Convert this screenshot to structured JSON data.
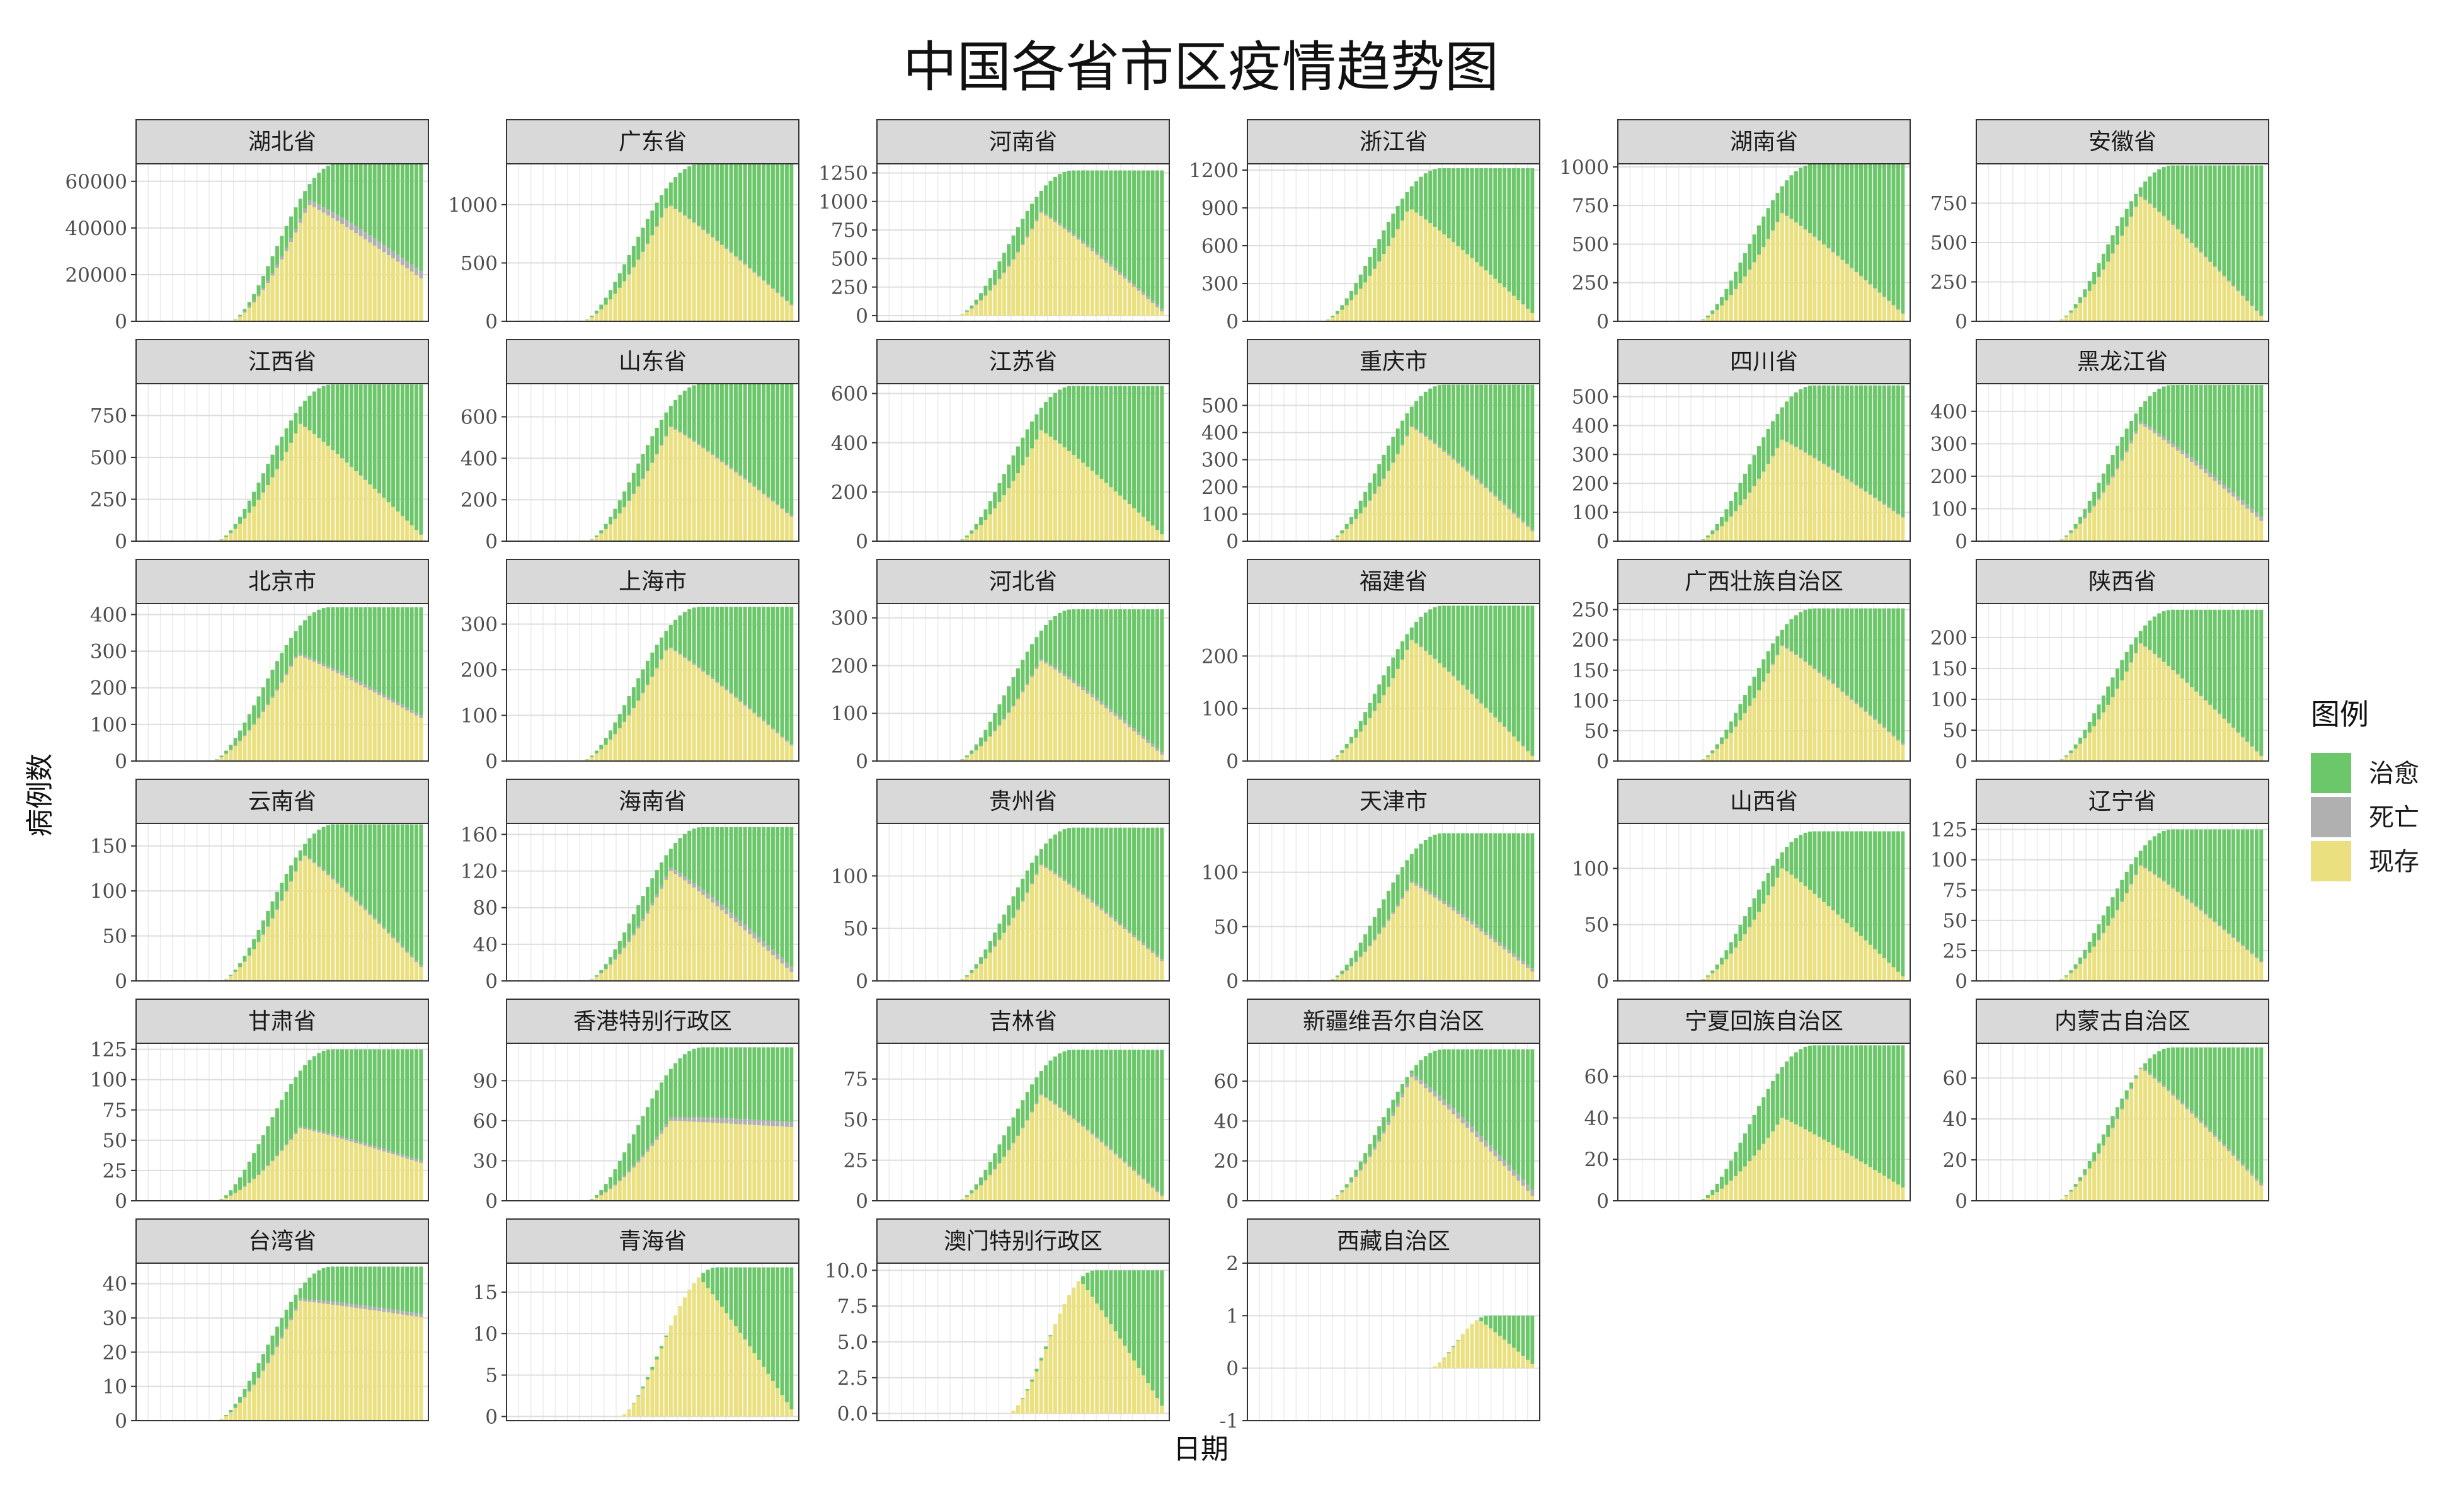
{
  "title": "中国各省市区疫情趋势图",
  "xlabel": "日期",
  "ylabel": "病例数",
  "legend": {
    "title": "图例",
    "items": [
      {
        "label": "治愈",
        "color": "#6cc76a"
      },
      {
        "label": "死亡",
        "color": "#b0b0b0"
      },
      {
        "label": "现存",
        "color": "#ebe07f"
      }
    ]
  },
  "chart_data": {
    "type": "bar",
    "stacked": true,
    "stack_order": [
      "现存",
      "死亡",
      "治愈"
    ],
    "colors": {
      "治愈": "#6cc76a",
      "死亡": "#b0b0b0",
      "现存": "#ebe07f"
    },
    "grid": true,
    "legend_position": "right",
    "days": 60,
    "panels": [
      {
        "name": "湖北省",
        "yticks": [
          0,
          20000,
          40000,
          60000
        ],
        "ylim": [
          0,
          67500
        ],
        "onset": 18,
        "confirmed": 67800,
        "peak": 50000,
        "final": 17000,
        "deaths": 3100
      },
      {
        "name": "广东省",
        "yticks": [
          0,
          500,
          1000
        ],
        "ylim": [
          0,
          1350
        ],
        "onset": 14,
        "confirmed": 1350,
        "peak": 1000,
        "final": 100,
        "deaths": 8
      },
      {
        "name": "河南省",
        "yticks": [
          0,
          250,
          500,
          750,
          1000,
          1250
        ],
        "ylim": [
          -50,
          1330
        ],
        "onset": 15,
        "confirmed": 1272,
        "peak": 900,
        "final": 0,
        "deaths": 22
      },
      {
        "name": "浙江省",
        "yticks": [
          0,
          300,
          600,
          900,
          1200
        ],
        "ylim": [
          0,
          1250
        ],
        "onset": 14,
        "confirmed": 1215,
        "peak": 900,
        "final": 30,
        "deaths": 1
      },
      {
        "name": "湖南省",
        "yticks": [
          0,
          250,
          500,
          750,
          1000
        ],
        "ylim": [
          0,
          1020
        ],
        "onset": 15,
        "confirmed": 1018,
        "peak": 700,
        "final": 20,
        "deaths": 4
      },
      {
        "name": "安徽省",
        "yticks": [
          0,
          250,
          500,
          750
        ],
        "ylim": [
          0,
          1000
        ],
        "onset": 15,
        "confirmed": 990,
        "peak": 790,
        "final": 0,
        "deaths": 6
      },
      {
        "name": "江西省",
        "yticks": [
          0,
          250,
          500,
          750
        ],
        "ylim": [
          0,
          940
        ],
        "onset": 15,
        "confirmed": 935,
        "peak": 700,
        "final": 10,
        "deaths": 1
      },
      {
        "name": "山东省",
        "yticks": [
          0,
          200,
          400,
          600
        ],
        "ylim": [
          0,
          760
        ],
        "onset": 15,
        "confirmed": 760,
        "peak": 550,
        "final": 100,
        "deaths": 6
      },
      {
        "name": "江苏省",
        "yticks": [
          0,
          200,
          400,
          600
        ],
        "ylim": [
          0,
          640
        ],
        "onset": 15,
        "confirmed": 631,
        "peak": 450,
        "final": 10,
        "deaths": 0
      },
      {
        "name": "重庆市",
        "yticks": [
          0,
          100,
          200,
          300,
          400,
          500
        ],
        "ylim": [
          0,
          580
        ],
        "onset": 15,
        "confirmed": 576,
        "peak": 420,
        "final": 20,
        "deaths": 6
      },
      {
        "name": "四川省",
        "yticks": [
          0,
          100,
          200,
          300,
          400,
          500
        ],
        "ylim": [
          0,
          545
        ],
        "onset": 15,
        "confirmed": 539,
        "peak": 350,
        "final": 70,
        "deaths": 3
      },
      {
        "name": "黑龙江省",
        "yticks": [
          0,
          100,
          200,
          300,
          400
        ],
        "ylim": [
          0,
          485
        ],
        "onset": 15,
        "confirmed": 481,
        "peak": 360,
        "final": 50,
        "deaths": 13
      },
      {
        "name": "北京市",
        "yticks": [
          0,
          100,
          200,
          300,
          400
        ],
        "ylim": [
          0,
          430
        ],
        "onset": 14,
        "confirmed": 420,
        "peak": 290,
        "final": 110,
        "deaths": 8
      },
      {
        "name": "上海市",
        "yticks": [
          0,
          100,
          200,
          300
        ],
        "ylim": [
          0,
          345
        ],
        "onset": 14,
        "confirmed": 338,
        "peak": 250,
        "final": 25,
        "deaths": 3
      },
      {
        "name": "河北省",
        "yticks": [
          0,
          100,
          200,
          300
        ],
        "ylim": [
          0,
          330
        ],
        "onset": 15,
        "confirmed": 318,
        "peak": 210,
        "final": 5,
        "deaths": 6
      },
      {
        "name": "福建省",
        "yticks": [
          0,
          100,
          200
        ],
        "ylim": [
          0,
          300
        ],
        "onset": 15,
        "confirmed": 296,
        "peak": 230,
        "final": 0,
        "deaths": 1
      },
      {
        "name": "广西壮族自治区",
        "yticks": [
          0,
          50,
          100,
          150,
          200,
          250
        ],
        "ylim": [
          0,
          260
        ],
        "onset": 15,
        "confirmed": 252,
        "peak": 190,
        "final": 20,
        "deaths": 2
      },
      {
        "name": "陕西省",
        "yticks": [
          0,
          50,
          100,
          150,
          200
        ],
        "ylim": [
          0,
          255
        ],
        "onset": 15,
        "confirmed": 245,
        "peak": 190,
        "final": 0,
        "deaths": 1
      },
      {
        "name": "云南省",
        "yticks": [
          0,
          50,
          100,
          150
        ],
        "ylim": [
          0,
          175
        ],
        "onset": 16,
        "confirmed": 174,
        "peak": 140,
        "final": 10,
        "deaths": 2
      },
      {
        "name": "海南省",
        "yticks": [
          0,
          40,
          80,
          120,
          160
        ],
        "ylim": [
          0,
          172
        ],
        "onset": 15,
        "confirmed": 168,
        "peak": 120,
        "final": 5,
        "deaths": 6
      },
      {
        "name": "贵州省",
        "yticks": [
          0,
          50,
          100
        ],
        "ylim": [
          0,
          150
        ],
        "onset": 15,
        "confirmed": 146,
        "peak": 110,
        "final": 15,
        "deaths": 2
      },
      {
        "name": "天津市",
        "yticks": [
          0,
          50,
          100
        ],
        "ylim": [
          0,
          145
        ],
        "onset": 15,
        "confirmed": 136,
        "peak": 90,
        "final": 5,
        "deaths": 3
      },
      {
        "name": "山西省",
        "yticks": [
          0,
          50,
          100
        ],
        "ylim": [
          0,
          140
        ],
        "onset": 15,
        "confirmed": 133,
        "peak": 100,
        "final": 0,
        "deaths": 0
      },
      {
        "name": "辽宁省",
        "yticks": [
          0,
          25,
          50,
          75,
          100,
          125
        ],
        "ylim": [
          0,
          130
        ],
        "onset": 15,
        "confirmed": 125,
        "peak": 95,
        "final": 12,
        "deaths": 1
      },
      {
        "name": "甘肃省",
        "yticks": [
          0,
          25,
          50,
          75,
          100,
          125
        ],
        "ylim": [
          0,
          130
        ],
        "onset": 15,
        "confirmed": 125,
        "peak": 60,
        "final": 30,
        "deaths": 2
      },
      {
        "name": "香港特别行政区",
        "yticks": [
          0,
          30,
          60,
          90
        ],
        "ylim": [
          0,
          118
        ],
        "onset": 15,
        "confirmed": 115,
        "peak": 60,
        "final": 55,
        "deaths": 4
      },
      {
        "name": "吉林省",
        "yticks": [
          0,
          25,
          50,
          75
        ],
        "ylim": [
          0,
          97
        ],
        "onset": 15,
        "confirmed": 93,
        "peak": 65,
        "final": 0,
        "deaths": 1
      },
      {
        "name": "新疆维吾尔自治区",
        "yticks": [
          0,
          20,
          40,
          60
        ],
        "ylim": [
          0,
          79
        ],
        "onset": 15,
        "confirmed": 76,
        "peak": 62,
        "final": 0,
        "deaths": 3
      },
      {
        "name": "宁夏回族自治区",
        "yticks": [
          0,
          20,
          40,
          60
        ],
        "ylim": [
          0,
          76
        ],
        "onset": 15,
        "confirmed": 75,
        "peak": 40,
        "final": 5,
        "deaths": 0
      },
      {
        "name": "内蒙古自治区",
        "yticks": [
          0,
          20,
          40,
          60
        ],
        "ylim": [
          0,
          77
        ],
        "onset": 15,
        "confirmed": 75,
        "peak": 65,
        "final": 5,
        "deaths": 1
      },
      {
        "name": "台湾省",
        "yticks": [
          0,
          10,
          20,
          30,
          40
        ],
        "ylim": [
          0,
          46
        ],
        "onset": 15,
        "confirmed": 45,
        "peak": 35,
        "final": 30,
        "deaths": 1
      },
      {
        "name": "青海省",
        "yticks": [
          0,
          5,
          10,
          15
        ],
        "ylim": [
          -0.5,
          18.5
        ],
        "onset": 22,
        "confirmed": 18,
        "peak": 18,
        "final": 0,
        "deaths": 0
      },
      {
        "name": "澳门特别行政区",
        "yticks": [
          0,
          2.5,
          5,
          7.5,
          10
        ],
        "yticklabels": [
          "0.0",
          "2.5",
          "5.0",
          "7.5",
          "10.0"
        ],
        "ylim": [
          -0.5,
          10.5
        ],
        "onset": 26,
        "confirmed": 10,
        "peak": 10,
        "final": 0,
        "deaths": 0
      },
      {
        "name": "西藏自治区",
        "yticks": [
          -1,
          0,
          1,
          2
        ],
        "ylim": [
          -1,
          2
        ],
        "onset": 37,
        "confirmed": 1,
        "peak": 1,
        "final": 0,
        "deaths": 0
      }
    ]
  }
}
